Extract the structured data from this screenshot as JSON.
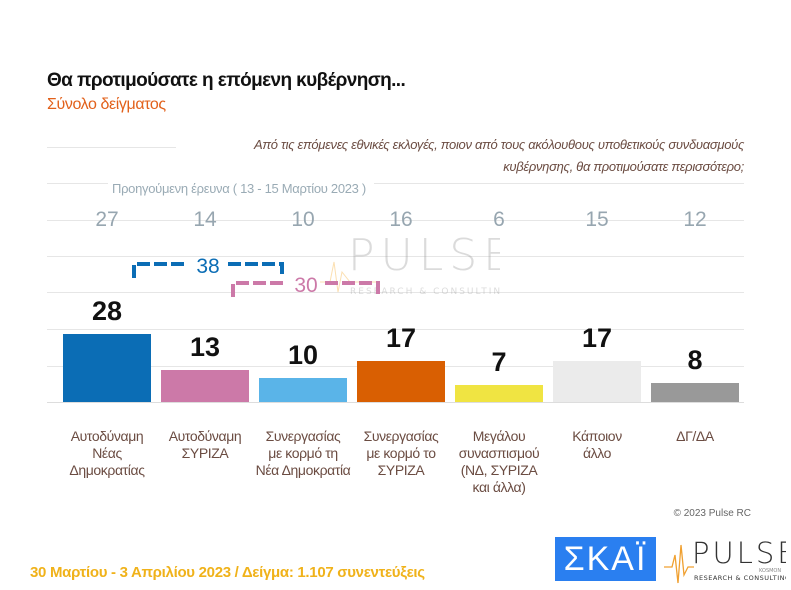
{
  "header": {
    "title": "Θα προτιμούσατε η επόμενη κυβέρνηση...",
    "subtitle": "Σύνολο δείγματος"
  },
  "question": "Από τις επόμενες εθνικές εκλογές, ποιον από τους ακόλουθους υποθετικούς συνδυασμούς κυβέρνησης, θα προτιμούσατε περισσότερο;",
  "previous_survey_label": "Προηγούμενη έρευνα  ( 13 - 15 Μαρτίου  2023 )",
  "brackets": [
    {
      "value": "38",
      "color": "#0b6db5"
    },
    {
      "value": "30",
      "color": "#cc79a8"
    }
  ],
  "chart_data": {
    "type": "bar",
    "title": "Θα προτιμούσατε η επόμενη κυβέρνηση...",
    "categories": [
      "Αυτοδύναμη Νέας Δημοκρατίας",
      "Αυτοδύναμη ΣΥΡΙΖΑ",
      "Συνεργασίας με κορμό τη Νέα Δημοκρατία",
      "Συνεργασίας με κορμό το ΣΥΡΙΖΑ",
      "Μεγάλου συνασπισμού (ΝΔ, ΣΥΡΙΖΑ και άλλα)",
      "Κάποιον άλλο",
      "ΔΓ/ΔΑ"
    ],
    "category_lines": [
      [
        "Αυτοδύναμη",
        "Νέας",
        "Δημοκρατίας"
      ],
      [
        "Αυτοδύναμη",
        "ΣΥΡΙΖΑ"
      ],
      [
        "Συνεργασίας",
        "με κορμό τη",
        "Νέα Δημοκρατία"
      ],
      [
        "Συνεργασίας",
        "με κορμό το",
        "ΣΥΡΙΖΑ"
      ],
      [
        "Μεγάλου",
        "συνασπισμού",
        "(ΝΔ, ΣΥΡΙΖΑ",
        "και άλλα)"
      ],
      [
        "Κάποιον",
        "άλλο"
      ],
      [
        "ΔΓ/ΔΑ"
      ]
    ],
    "values": [
      28,
      13,
      10,
      17,
      7,
      17,
      8
    ],
    "previous_values": [
      27,
      14,
      10,
      16,
      6,
      15,
      12
    ],
    "colors": [
      "#0b6db5",
      "#cc79a8",
      "#5ab4e8",
      "#d95f02",
      "#f0e442",
      "#ebebeb",
      "#999999"
    ],
    "grid": true
  },
  "copyright": "© 2023 Pulse RC",
  "footer": "30 Μαρτίου - 3  Απριλίου  2023  /  Δείγμα:  1.107 συνεντεύξεις",
  "logos": {
    "skai": "ΣΚΑΪ",
    "pulse": "PULSE",
    "pulse_sub": "RESEARCH & CONSULTING",
    "kosmon": "KOSMON"
  }
}
